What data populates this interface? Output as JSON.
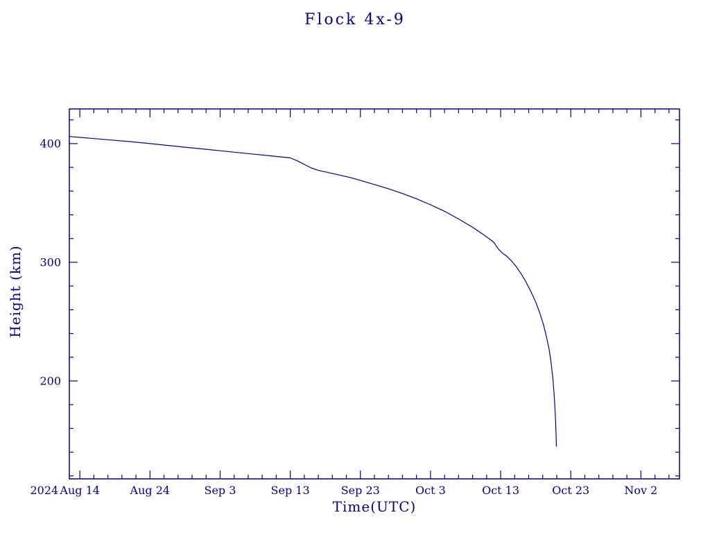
{
  "title": "Flock 4x-9",
  "colors": {
    "line": "#000080",
    "text": "#000080",
    "background": "#ffffff"
  },
  "chart_data": {
    "type": "line",
    "title": "Flock 4x-9",
    "xlabel": "Time(UTC)",
    "ylabel": "Height (km)",
    "x_unit": "days since 2024 Aug 12.5",
    "xlim": [
      0,
      87
    ],
    "ylim": [
      117.5,
      429.2
    ],
    "grid": false,
    "legend": "none",
    "year_label": "2024",
    "x_ticks": [
      {
        "day": 1.5,
        "label": "Aug 14"
      },
      {
        "day": 11.5,
        "label": "Aug 24"
      },
      {
        "day": 21.5,
        "label": "Sep 3"
      },
      {
        "day": 31.5,
        "label": "Sep 13"
      },
      {
        "day": 41.5,
        "label": "Sep 23"
      },
      {
        "day": 51.5,
        "label": "Oct 3"
      },
      {
        "day": 61.5,
        "label": "Oct 13"
      },
      {
        "day": 71.5,
        "label": "Oct 23"
      },
      {
        "day": 81.5,
        "label": "Nov 2"
      }
    ],
    "x_minor_step_days": 2,
    "y_ticks": [
      {
        "value": 200,
        "label": "200"
      },
      {
        "value": 300,
        "label": "300"
      },
      {
        "value": 400,
        "label": "400"
      }
    ],
    "y_minor_step": 20,
    "series": [
      {
        "name": "Flock 4x-9 height",
        "points": [
          [
            0,
            406
          ],
          [
            3,
            404.5
          ],
          [
            6,
            403
          ],
          [
            9,
            401.5
          ],
          [
            11.5,
            400
          ],
          [
            14,
            398.5
          ],
          [
            16.5,
            397
          ],
          [
            19,
            395.5
          ],
          [
            21.5,
            394
          ],
          [
            24,
            392.5
          ],
          [
            26.5,
            391
          ],
          [
            29,
            389.5
          ],
          [
            31.5,
            388
          ],
          [
            32.5,
            385.5
          ],
          [
            33.5,
            382.5
          ],
          [
            34.5,
            379.5
          ],
          [
            35.5,
            377.5
          ],
          [
            37,
            375.5
          ],
          [
            38.5,
            373.5
          ],
          [
            40,
            371.5
          ],
          [
            41.5,
            369
          ],
          [
            43.5,
            365.5
          ],
          [
            45.5,
            362
          ],
          [
            47.5,
            358
          ],
          [
            49.5,
            353.5
          ],
          [
            51.5,
            348.5
          ],
          [
            53.5,
            343
          ],
          [
            55.5,
            336.5
          ],
          [
            57.5,
            329.5
          ],
          [
            59,
            323.5
          ],
          [
            60.5,
            317
          ],
          [
            61.2,
            311
          ],
          [
            61.8,
            307.5
          ],
          [
            62.4,
            305
          ],
          [
            63,
            301.5
          ],
          [
            63.7,
            296.5
          ],
          [
            64.4,
            290.5
          ],
          [
            65.1,
            283.5
          ],
          [
            65.8,
            275.5
          ],
          [
            66.5,
            266.5
          ],
          [
            67.1,
            257
          ],
          [
            67.6,
            247.5
          ],
          [
            68,
            238
          ],
          [
            68.4,
            227
          ],
          [
            68.7,
            215
          ],
          [
            68.95,
            202
          ],
          [
            69.15,
            187
          ],
          [
            69.3,
            170
          ],
          [
            69.4,
            155
          ],
          [
            69.45,
            145
          ]
        ]
      }
    ]
  }
}
